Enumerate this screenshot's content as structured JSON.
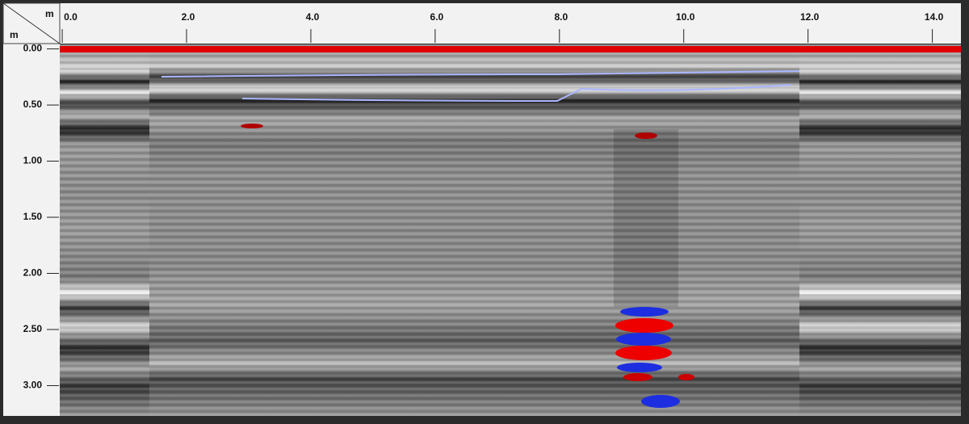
{
  "chart_data": {
    "type": "radargram",
    "x_unit": "m",
    "y_unit": "m",
    "xlim": [
      -0.04,
      14.46
    ],
    "ylim": [
      -0.04,
      3.27
    ],
    "xticks": [
      {
        "value": 0,
        "label": "0.0"
      },
      {
        "value": 2,
        "label": "2.0"
      },
      {
        "value": 4,
        "label": "4.0"
      },
      {
        "value": 6,
        "label": "6.0"
      },
      {
        "value": 8,
        "label": "8.0"
      },
      {
        "value": 10,
        "label": "10.0"
      },
      {
        "value": 12,
        "label": "12.0"
      },
      {
        "value": 14,
        "label": "14.0"
      }
    ],
    "yticks": [
      {
        "value": 0,
        "label": "0.00"
      },
      {
        "value": 0.5,
        "label": "0.50"
      },
      {
        "value": 1,
        "label": "1.00"
      },
      {
        "value": 1.5,
        "label": "1.50"
      },
      {
        "value": 2,
        "label": "2.00"
      },
      {
        "value": 2.5,
        "label": "2.50"
      },
      {
        "value": 3,
        "label": "3.00"
      }
    ]
  }
}
